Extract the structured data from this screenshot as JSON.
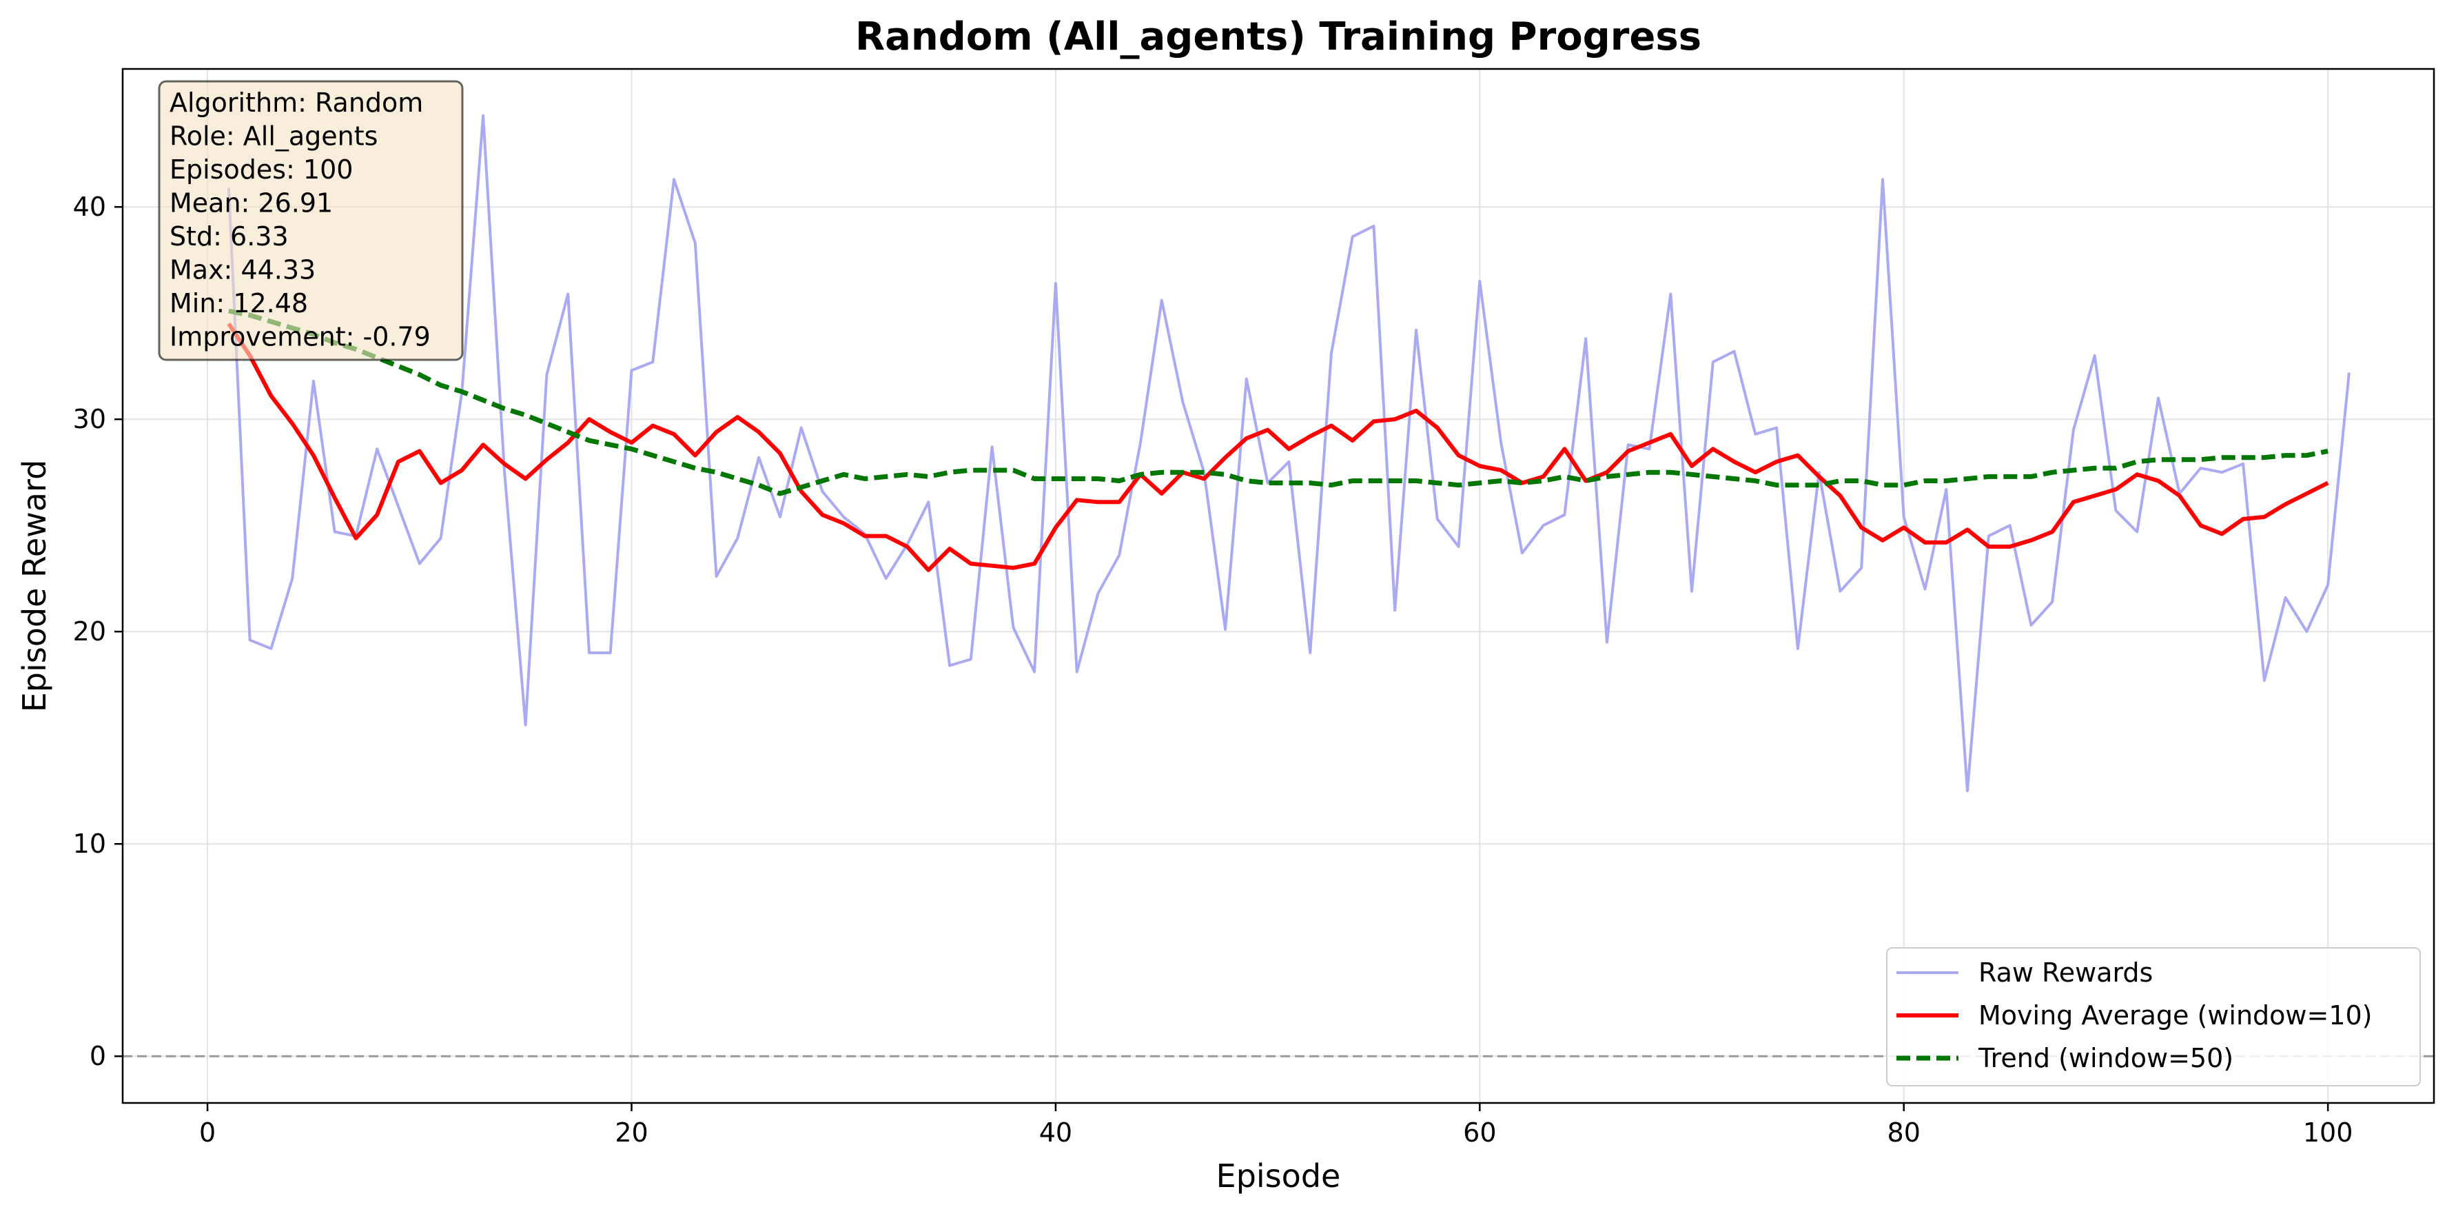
{
  "chart_data": {
    "type": "line",
    "title": "Random (All_agents) Training Progress",
    "xlabel": "Episode",
    "ylabel": "Episode Reward",
    "xlim": [
      -4,
      105
    ],
    "ylim": [
      -2.2,
      46.5
    ],
    "xticks": [
      0,
      20,
      40,
      60,
      80,
      100
    ],
    "yticks": [
      0,
      10,
      20,
      30,
      40
    ],
    "xtick_labels": [
      "0",
      "20",
      "40",
      "60",
      "80",
      "100"
    ],
    "ytick_labels": [
      "0",
      "10",
      "20",
      "30",
      "40"
    ],
    "grid": true,
    "reference_line": {
      "y": 0,
      "style": "dashed",
      "color": "#999999"
    },
    "legend_position": "lower right",
    "stats_box": {
      "position": "top-left",
      "lines": [
        "Algorithm: Random",
        "Role: All_agents",
        "Episodes: 100",
        "Mean: 26.91",
        "Std: 6.33",
        "Max: 44.33",
        "Min: 12.48",
        "Improvement: -0.79"
      ]
    },
    "series": [
      {
        "name": "Raw Rewards",
        "color": "#aaaaf2",
        "style": "solid",
        "x_start": 1,
        "values": [
          40.9,
          19.6,
          19.2,
          22.5,
          31.8,
          24.7,
          24.5,
          28.6,
          25.9,
          23.2,
          24.4,
          31.3,
          44.3,
          27.6,
          15.6,
          32.1,
          35.9,
          19.0,
          19.0,
          32.3,
          32.7,
          41.3,
          38.3,
          22.6,
          24.4,
          28.2,
          25.4,
          29.6,
          26.6,
          25.4,
          24.6,
          22.5,
          24.1,
          26.1,
          18.4,
          18.7,
          28.7,
          20.2,
          18.1,
          36.4,
          18.1,
          21.8,
          23.6,
          28.9,
          35.6,
          30.8,
          27.5,
          20.1,
          31.9,
          27.0,
          28.0,
          19.0,
          33.1,
          38.6,
          39.1,
          21.0,
          34.2,
          25.3,
          24.0,
          36.5,
          28.9,
          23.7,
          25.0,
          25.5,
          33.8,
          19.5,
          28.8,
          28.6,
          35.9,
          21.9,
          32.7,
          33.2,
          29.3,
          29.6,
          19.2,
          27.5,
          21.9,
          23.0,
          41.3,
          25.4,
          22.0,
          26.7,
          12.5,
          24.5,
          25.0,
          20.3,
          21.4,
          29.5,
          33.0,
          25.7,
          24.7,
          31.0,
          26.5,
          27.7,
          27.5,
          27.9,
          17.7,
          21.6,
          20.0,
          22.2,
          32.2
        ]
      },
      {
        "name": "Moving Average (window=10)",
        "color": "#ff0000",
        "style": "solid",
        "x_start": 1,
        "values": [
          34.5,
          33.0,
          31.1,
          29.8,
          28.3,
          26.3,
          24.4,
          25.5,
          28.0,
          28.5,
          27.0,
          27.6,
          28.8,
          27.9,
          27.2,
          28.1,
          28.9,
          30.0,
          29.4,
          28.9,
          29.7,
          29.3,
          28.3,
          29.4,
          30.1,
          29.4,
          28.4,
          26.6,
          25.5,
          25.1,
          24.5,
          24.5,
          24.0,
          22.9,
          23.9,
          23.2,
          23.1,
          23.0,
          23.2,
          24.9,
          26.2,
          26.1,
          26.1,
          27.4,
          26.5,
          27.5,
          27.2,
          28.2,
          29.1,
          29.5,
          28.6,
          29.2,
          29.7,
          29.0,
          29.9,
          30.0,
          30.4,
          29.6,
          28.3,
          27.8,
          27.6,
          27.0,
          27.3,
          28.6,
          27.1,
          27.5,
          28.5,
          28.9,
          29.3,
          27.8,
          28.6,
          28.0,
          27.5,
          28.0,
          28.3,
          27.3,
          26.4,
          24.9,
          24.3,
          24.9,
          24.2,
          24.2,
          24.8,
          24.0,
          24.0,
          24.3,
          24.7,
          26.1,
          26.4,
          26.7,
          27.4,
          27.1,
          26.4,
          25.0,
          24.6,
          25.3,
          25.4,
          26.0,
          26.5,
          27.0
        ]
      },
      {
        "name": "Trend (window=50)",
        "color": "#007700",
        "style": "dashed",
        "x_start": 1,
        "values": [
          35.1,
          34.9,
          34.6,
          34.3,
          34.0,
          33.6,
          33.3,
          32.9,
          32.5,
          32.1,
          31.6,
          31.3,
          30.9,
          30.5,
          30.2,
          29.8,
          29.4,
          29.0,
          28.8,
          28.6,
          28.3,
          28.0,
          27.7,
          27.5,
          27.2,
          26.9,
          26.5,
          26.8,
          27.1,
          27.4,
          27.2,
          27.3,
          27.4,
          27.3,
          27.5,
          27.6,
          27.6,
          27.6,
          27.2,
          27.2,
          27.2,
          27.2,
          27.1,
          27.4,
          27.5,
          27.5,
          27.5,
          27.4,
          27.1,
          27.0,
          27.0,
          27.0,
          26.9,
          27.1,
          27.1,
          27.1,
          27.1,
          27.0,
          26.9,
          27.0,
          27.1,
          27.0,
          27.1,
          27.3,
          27.1,
          27.3,
          27.4,
          27.5,
          27.5,
          27.4,
          27.3,
          27.2,
          27.1,
          26.9,
          26.9,
          26.9,
          27.1,
          27.1,
          26.9,
          26.9,
          27.1,
          27.1,
          27.2,
          27.3,
          27.3,
          27.3,
          27.5,
          27.6,
          27.7,
          27.7,
          28.0,
          28.1,
          28.1,
          28.1,
          28.2,
          28.2,
          28.2,
          28.3,
          28.3,
          28.5
        ]
      }
    ]
  }
}
